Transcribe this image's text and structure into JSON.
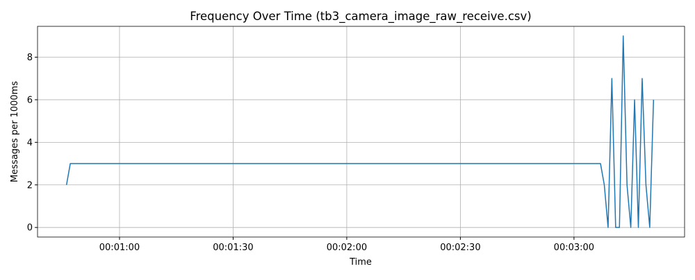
{
  "chart_data": {
    "type": "line",
    "title": "Frequency Over Time (tb3_camera_image_raw_receive.csv)",
    "x_label": "Time",
    "y_label": "Messages per 1000ms",
    "x": [
      46,
      47,
      187,
      188,
      189,
      190,
      191,
      192,
      193,
      194,
      195,
      196,
      197,
      198,
      199,
      200,
      201
    ],
    "series": [
      {
        "name": "Messages per 1000ms",
        "color": "#1f77b4",
        "values": [
          2,
          3,
          3,
          2,
          0,
          7,
          0,
          0,
          9,
          2,
          0,
          6,
          0,
          7,
          2,
          0,
          6
        ]
      }
    ],
    "xlim": [
      38.35,
      209.2
    ],
    "ylim": [
      -0.45,
      9.45
    ],
    "xticks": [
      {
        "value": 60,
        "label": "00:01:00"
      },
      {
        "value": 90,
        "label": "00:01:30"
      },
      {
        "value": 120,
        "label": "00:02:00"
      },
      {
        "value": 150,
        "label": "00:02:30"
      },
      {
        "value": 180,
        "label": "00:03:00"
      }
    ],
    "yticks": [
      0,
      2,
      4,
      6,
      8
    ],
    "grid": true
  }
}
